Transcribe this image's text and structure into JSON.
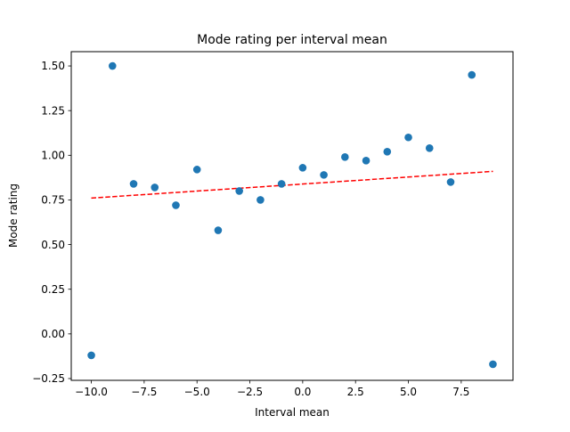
{
  "chart_data": {
    "type": "scatter",
    "title": "Mode rating per interval mean",
    "xlabel": "Interval mean",
    "ylabel": "Mode rating",
    "xlim": [
      -10.95,
      9.95
    ],
    "ylim": [
      -0.26,
      1.58
    ],
    "x_ticks": [
      -10.0,
      -7.5,
      -5.0,
      -2.5,
      0.0,
      2.5,
      5.0,
      7.5
    ],
    "x_tick_labels": [
      "−10.0",
      "−7.5",
      "−5.0",
      "−2.5",
      "0.0",
      "2.5",
      "5.0",
      "7.5"
    ],
    "y_ticks": [
      -0.25,
      0.0,
      0.25,
      0.5,
      0.75,
      1.0,
      1.25,
      1.5
    ],
    "y_tick_labels": [
      "−0.25",
      "0.00",
      "0.25",
      "0.50",
      "0.75",
      "1.00",
      "1.25",
      "1.50"
    ],
    "grid": false,
    "series": [
      {
        "kind": "scatter",
        "color": "#1f77b4",
        "points": [
          {
            "x": -10,
            "y": -0.12
          },
          {
            "x": -9,
            "y": 1.5
          },
          {
            "x": -8,
            "y": 0.84
          },
          {
            "x": -7,
            "y": 0.82
          },
          {
            "x": -6,
            "y": 0.72
          },
          {
            "x": -5,
            "y": 0.92
          },
          {
            "x": -4,
            "y": 0.58
          },
          {
            "x": -3,
            "y": 0.8
          },
          {
            "x": -2,
            "y": 0.75
          },
          {
            "x": -1,
            "y": 0.84
          },
          {
            "x": 0,
            "y": 0.93
          },
          {
            "x": 1,
            "y": 0.89
          },
          {
            "x": 2,
            "y": 0.99
          },
          {
            "x": 3,
            "y": 0.97
          },
          {
            "x": 4,
            "y": 1.02
          },
          {
            "x": 5,
            "y": 1.1
          },
          {
            "x": 6,
            "y": 1.04
          },
          {
            "x": 7,
            "y": 0.85
          },
          {
            "x": 8,
            "y": 1.45
          },
          {
            "x": 9,
            "y": -0.17
          }
        ]
      },
      {
        "kind": "trend-line",
        "style": "dashed",
        "color": "#ff0000",
        "points": [
          {
            "x": -10,
            "y": 0.76
          },
          {
            "x": 9,
            "y": 0.91
          }
        ]
      }
    ]
  }
}
